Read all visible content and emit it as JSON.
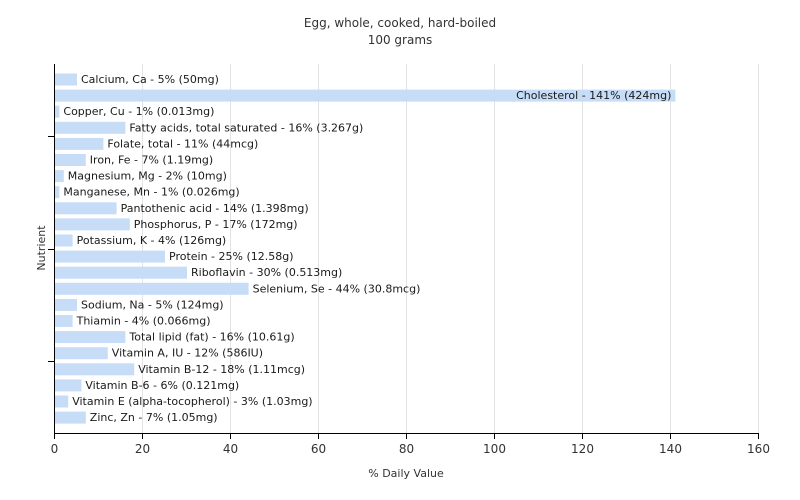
{
  "chart_data": {
    "type": "bar",
    "orientation": "horizontal",
    "title": "Egg, whole, cooked, hard-boiled",
    "subtitle": "100 grams",
    "xlabel": "% Daily Value",
    "ylabel": "Nutrient",
    "xlim": [
      0,
      160
    ],
    "xticks": [
      0,
      20,
      40,
      60,
      80,
      100,
      120,
      140,
      160
    ],
    "grid": true,
    "bar_color": "#c6dcf7",
    "categories": [
      "Calcium, Ca",
      "Cholesterol",
      "Copper, Cu",
      "Fatty acids, total saturated",
      "Folate, total",
      "Iron, Fe",
      "Magnesium, Mg",
      "Manganese, Mn",
      "Pantothenic acid",
      "Phosphorus, P",
      "Potassium, K",
      "Protein",
      "Riboflavin",
      "Selenium, Se",
      "Sodium, Na",
      "Thiamin",
      "Total lipid (fat)",
      "Vitamin A, IU",
      "Vitamin B-12",
      "Vitamin B-6",
      "Vitamin E (alpha-tocopherol)",
      "Zinc, Zn"
    ],
    "values": [
      5,
      141,
      1,
      16,
      11,
      7,
      2,
      1,
      14,
      17,
      4,
      25,
      30,
      44,
      5,
      4,
      16,
      12,
      18,
      6,
      3,
      7
    ],
    "data_labels": [
      "Calcium, Ca - 5% (50mg)",
      "Cholesterol - 141% (424mg)",
      "Copper, Cu - 1% (0.013mg)",
      "Fatty acids, total saturated - 16% (3.267g)",
      "Folate, total - 11% (44mcg)",
      "Iron, Fe - 7% (1.19mg)",
      "Magnesium, Mg - 2% (10mg)",
      "Manganese, Mn - 1% (0.026mg)",
      "Pantothenic acid - 14% (1.398mg)",
      "Phosphorus, P - 17% (172mg)",
      "Potassium, K - 4% (126mg)",
      "Protein - 25% (12.58g)",
      "Riboflavin - 30% (0.513mg)",
      "Selenium, Se - 44% (30.8mcg)",
      "Sodium, Na - 5% (124mg)",
      "Thiamin - 4% (0.066mg)",
      "Total lipid (fat) - 16% (10.61g)",
      "Vitamin A, IU - 12% (586IU)",
      "Vitamin B-12 - 18% (1.11mcg)",
      "Vitamin B-6 - 6% (0.121mg)",
      "Vitamin E (alpha-tocopherol) - 3% (1.03mg)",
      "Zinc, Zn - 7% (1.05mg)"
    ]
  }
}
